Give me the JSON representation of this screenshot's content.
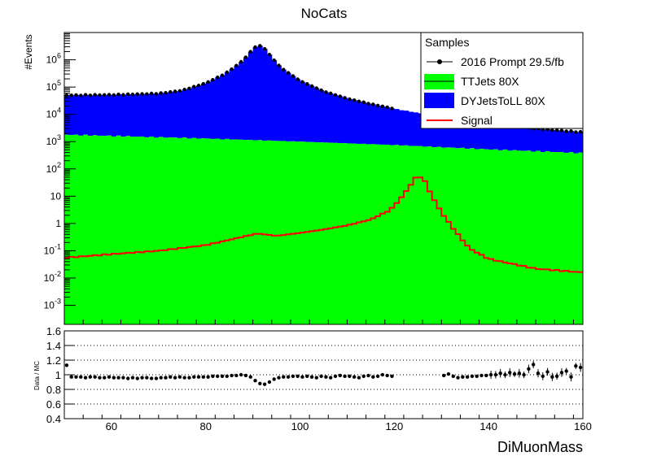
{
  "chart_data": [
    {
      "type": "histogram",
      "title": "NoCats",
      "ylabel": "#Events",
      "xlabel": "",
      "log_y": true,
      "xlim": [
        50,
        160
      ],
      "ylim": [
        0.0002,
        10000000
      ],
      "bin_width": 1,
      "y_tick_labels": [
        "10^{-3}",
        "10^{-2}",
        "10^{-1}",
        "1",
        "10",
        "10^{2}",
        "10^{3}",
        "10^{4}",
        "10^{5}",
        "10^{6}"
      ],
      "legend": {
        "title": "Samples",
        "placement": "top-right",
        "entries": [
          "2016 Prompt 29.5/fb",
          "TTJets 80X",
          "DYJetsToLL 80X",
          "Signal"
        ]
      },
      "colors": {
        "ttjets": "#00ff00",
        "dyjets": "#0000ff",
        "signal": "#ff0000",
        "data": "#000000"
      },
      "series_shapes": {
        "ttjets": {
          "name": "TTJets 80X",
          "anchors": [
            [
              50,
              1800
            ],
            [
              80,
              1300
            ],
            [
              100,
              1000
            ],
            [
              120,
              750
            ],
            [
              140,
              520
            ],
            [
              160,
              380
            ]
          ]
        },
        "dyjets_total": {
          "name": "DYJetsToLL 80X",
          "anchors": [
            [
              50,
              50000
            ],
            [
              60,
              52000
            ],
            [
              70,
              58000
            ],
            [
              75,
              75000
            ],
            [
              80,
              140000
            ],
            [
              84,
              300000
            ],
            [
              87,
              700000
            ],
            [
              89,
              1500000
            ],
            [
              90,
              2600000
            ],
            [
              91,
              3300000
            ],
            [
              92,
              3200000
            ],
            [
              93,
              2000000
            ],
            [
              94,
              1200000
            ],
            [
              96,
              500000
            ],
            [
              100,
              170000
            ],
            [
              105,
              70000
            ],
            [
              110,
              38000
            ],
            [
              115,
              24000
            ],
            [
              120,
              16000
            ],
            [
              130,
              8000
            ],
            [
              140,
              4500
            ],
            [
              150,
              3000
            ],
            [
              160,
              2200
            ]
          ]
        },
        "signal": {
          "name": "Signal",
          "anchors": [
            [
              50,
              0.055
            ],
            [
              60,
              0.075
            ],
            [
              70,
              0.1
            ],
            [
              80,
              0.16
            ],
            [
              87,
              0.3
            ],
            [
              91,
              0.43
            ],
            [
              95,
              0.35
            ],
            [
              100,
              0.45
            ],
            [
              105,
              0.6
            ],
            [
              110,
              0.85
            ],
            [
              115,
              1.4
            ],
            [
              119,
              3
            ],
            [
              121,
              7
            ],
            [
              123,
              20
            ],
            [
              124.5,
              47
            ],
            [
              125.5,
              50
            ],
            [
              126.5,
              35
            ],
            [
              128,
              10
            ],
            [
              130,
              2.5
            ],
            [
              133,
              0.5
            ],
            [
              136,
              0.12
            ],
            [
              140,
              0.05
            ],
            [
              150,
              0.022
            ],
            [
              160,
              0.016
            ]
          ]
        }
      }
    },
    {
      "type": "scatter",
      "ylabel": "Data / MC",
      "xlabel": "DiMuonMass",
      "xlim": [
        50,
        160
      ],
      "ylim": [
        0.4,
        1.6
      ],
      "x_ticks": [
        60,
        80,
        100,
        120,
        140,
        160
      ],
      "y_ticks": [
        0.4,
        0.6,
        0.8,
        1,
        1.2,
        1.4,
        1.6
      ],
      "grid": "horizontal dotted",
      "points": [
        [
          50.5,
          1.13
        ],
        [
          51.5,
          0.97
        ],
        [
          52.5,
          0.97
        ],
        [
          53.5,
          0.97
        ],
        [
          54.5,
          0.96
        ],
        [
          55.5,
          0.97
        ],
        [
          56.5,
          0.97
        ],
        [
          57.5,
          0.96
        ],
        [
          58.5,
          0.96
        ],
        [
          59.5,
          0.97
        ],
        [
          60.5,
          0.96
        ],
        [
          61.5,
          0.96
        ],
        [
          62.5,
          0.96
        ],
        [
          63.5,
          0.95
        ],
        [
          64.5,
          0.96
        ],
        [
          65.5,
          0.95
        ],
        [
          66.5,
          0.96
        ],
        [
          67.5,
          0.96
        ],
        [
          68.5,
          0.95
        ],
        [
          69.5,
          0.95
        ],
        [
          70.5,
          0.96
        ],
        [
          71.5,
          0.96
        ],
        [
          72.5,
          0.97
        ],
        [
          73.5,
          0.96
        ],
        [
          74.5,
          0.97
        ],
        [
          75.5,
          0.96
        ],
        [
          76.5,
          0.96
        ],
        [
          77.5,
          0.97
        ],
        [
          78.5,
          0.97
        ],
        [
          79.5,
          0.97
        ],
        [
          80.5,
          0.97
        ],
        [
          81.5,
          0.98
        ],
        [
          82.5,
          0.98
        ],
        [
          83.5,
          0.98
        ],
        [
          84.5,
          0.98
        ],
        [
          85.5,
          0.99
        ],
        [
          86.5,
          0.99
        ],
        [
          87.5,
          1.0
        ],
        [
          88.5,
          0.99
        ],
        [
          89.5,
          0.97
        ],
        [
          90.5,
          0.92
        ],
        [
          91.5,
          0.88
        ],
        [
          92.5,
          0.87
        ],
        [
          93.5,
          0.9
        ],
        [
          94.5,
          0.94
        ],
        [
          95.5,
          0.96
        ],
        [
          96.5,
          0.97
        ],
        [
          97.5,
          0.97
        ],
        [
          98.5,
          0.98
        ],
        [
          99.5,
          0.98
        ],
        [
          100.5,
          0.97
        ],
        [
          101.5,
          0.98
        ],
        [
          102.5,
          0.97
        ],
        [
          103.5,
          0.96
        ],
        [
          104.5,
          0.98
        ],
        [
          105.5,
          0.97
        ],
        [
          106.5,
          0.96
        ],
        [
          107.5,
          0.98
        ],
        [
          108.5,
          0.99
        ],
        [
          109.5,
          0.98
        ],
        [
          110.5,
          0.98
        ],
        [
          111.5,
          0.97
        ],
        [
          112.5,
          0.96
        ],
        [
          113.5,
          0.98
        ],
        [
          114.5,
          0.99
        ],
        [
          115.5,
          0.97
        ],
        [
          116.5,
          0.98
        ],
        [
          117.5,
          1.0
        ],
        [
          118.5,
          0.99
        ],
        [
          119.5,
          0.98
        ],
        [
          130.5,
          0.99
        ],
        [
          131.5,
          1.01
        ],
        [
          132.5,
          0.98
        ],
        [
          133.5,
          0.96
        ],
        [
          134.5,
          0.97
        ],
        [
          135.5,
          0.97
        ],
        [
          136.5,
          0.98
        ],
        [
          137.5,
          0.98
        ],
        [
          138.5,
          0.99
        ],
        [
          139.5,
          0.99
        ],
        [
          140.5,
          1.0
        ],
        [
          141.5,
          1.0
        ],
        [
          142.5,
          1.02
        ],
        [
          143.5,
          1.0
        ],
        [
          144.5,
          1.03
        ],
        [
          145.5,
          1.01
        ],
        [
          146.5,
          1.02
        ],
        [
          147.5,
          1.0
        ],
        [
          148.5,
          1.08
        ],
        [
          149.5,
          1.14
        ],
        [
          150.5,
          1.02
        ],
        [
          151.5,
          0.98
        ],
        [
          152.5,
          1.04
        ],
        [
          153.5,
          0.97
        ],
        [
          154.5,
          0.98
        ],
        [
          155.5,
          1.03
        ],
        [
          156.5,
          1.05
        ],
        [
          157.5,
          0.97
        ],
        [
          158.5,
          1.12
        ],
        [
          159.5,
          1.1
        ]
      ]
    }
  ]
}
